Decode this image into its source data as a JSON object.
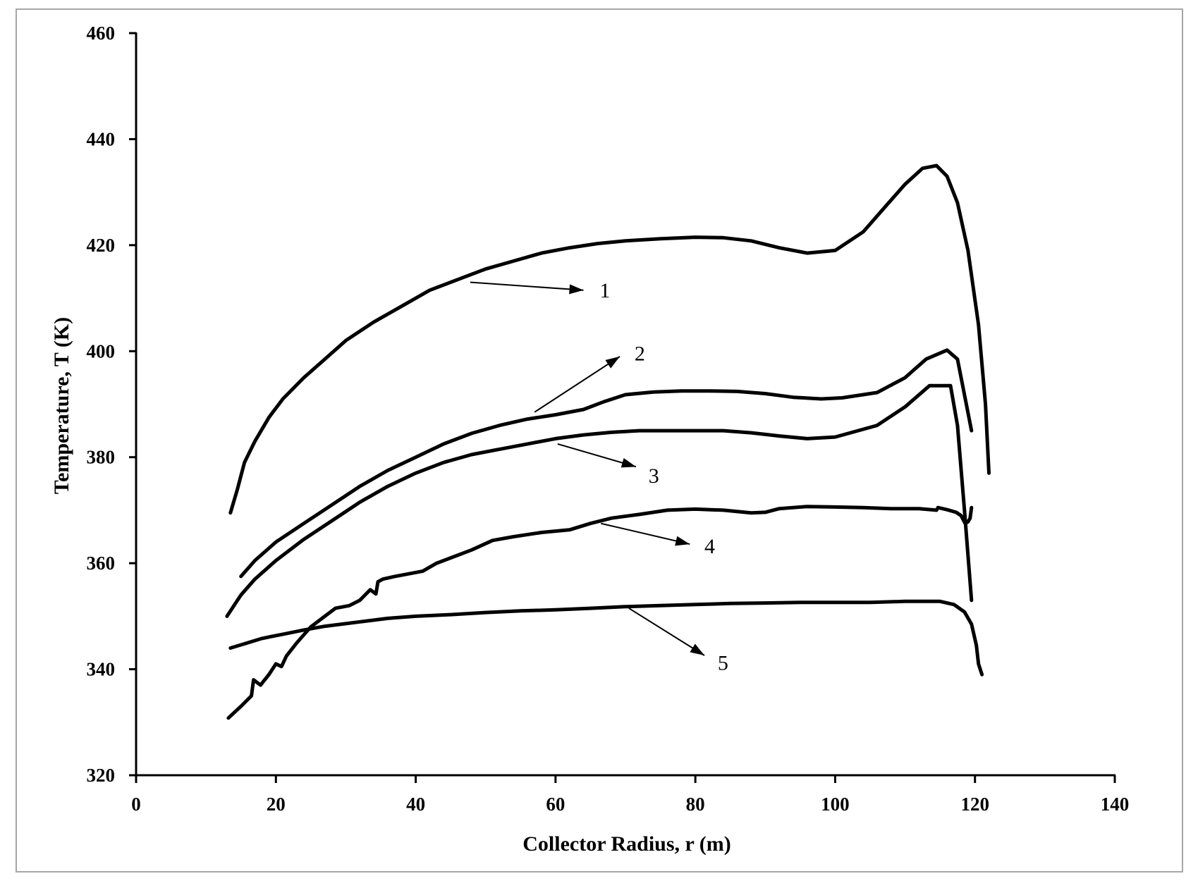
{
  "chart_data": {
    "type": "line",
    "title": "",
    "xlabel": "Collector Radius, r (m)",
    "ylabel": "Temperature, T (K)",
    "xlim": [
      0,
      140
    ],
    "ylim": [
      320,
      460
    ],
    "xticks": [
      0,
      20,
      40,
      60,
      80,
      100,
      120,
      140
    ],
    "yticks": [
      320,
      340,
      360,
      380,
      400,
      420,
      440,
      460
    ],
    "xtick_labels": [
      "0",
      "20",
      "40",
      "60",
      "80",
      "100",
      "120",
      "140"
    ],
    "ytick_labels": [
      "320",
      "340",
      "360",
      "380",
      "400",
      "420",
      "440",
      "460"
    ],
    "grid": false,
    "legend": "none",
    "colors": {
      "line": "#000000",
      "frame": "#a6a6a6"
    },
    "series": [
      {
        "name": "1",
        "x": [
          13.5,
          14.5,
          15.5,
          17,
          19,
          21,
          24,
          27,
          30,
          34,
          38,
          42,
          46,
          50,
          54,
          58,
          62,
          66,
          70,
          75,
          80,
          84,
          88,
          92,
          96,
          100,
          104,
          107,
          110,
          112.5,
          114.5,
          116,
          117.5,
          119,
          120.5,
          121.5,
          122
        ],
        "y": [
          369.5,
          374,
          379,
          383,
          387.5,
          391,
          395,
          398.5,
          402,
          405.5,
          408.5,
          411.5,
          413.5,
          415.5,
          417,
          418.5,
          419.5,
          420.3,
          420.8,
          421.2,
          421.5,
          421.4,
          420.8,
          419.5,
          418.5,
          419,
          422.5,
          427,
          431.5,
          434.5,
          435,
          433,
          428,
          419,
          405,
          390,
          377
        ]
      },
      {
        "name": "2",
        "x": [
          15,
          17,
          20,
          24,
          28,
          32,
          36,
          40,
          44,
          48,
          52,
          56,
          60,
          64,
          67,
          70,
          74,
          78,
          82,
          86,
          90,
          94,
          98,
          101,
          106,
          110,
          113,
          116,
          117.5,
          119.5
        ],
        "y": [
          357.5,
          360.5,
          364,
          367.5,
          371,
          374.5,
          377.5,
          380,
          382.5,
          384.5,
          386,
          387.2,
          388,
          389,
          390.5,
          391.8,
          392.3,
          392.5,
          392.5,
          392.4,
          392,
          391.3,
          391,
          391.2,
          392.2,
          395,
          398.5,
          400.2,
          398.5,
          385
        ]
      },
      {
        "name": "3",
        "x": [
          13,
          15,
          17,
          20,
          24,
          28,
          32,
          36,
          40,
          44,
          48,
          52,
          56,
          60,
          64,
          68,
          72,
          76,
          80,
          84,
          88,
          92,
          96,
          100,
          106,
          110,
          113.5,
          116.5,
          117.5,
          118.5,
          119.5
        ],
        "y": [
          350,
          354,
          357,
          360.5,
          364.5,
          368,
          371.5,
          374.5,
          377,
          379,
          380.5,
          381.5,
          382.5,
          383.5,
          384.2,
          384.7,
          385,
          385,
          385,
          385,
          384.6,
          384,
          383.5,
          383.8,
          386,
          389.5,
          393.5,
          393.5,
          386,
          370,
          353
        ]
      },
      {
        "name": "4",
        "x": [
          13.2,
          15,
          16.5,
          16.8,
          17.8,
          19,
          20,
          20.8,
          21.5,
          23,
          25,
          27,
          28.5,
          30.5,
          32,
          33.5,
          34.3,
          34.6,
          35.3,
          37,
          39,
          41,
          43,
          45,
          48,
          51,
          54,
          58,
          62,
          65,
          68,
          72,
          76,
          80,
          84,
          88,
          90,
          92,
          96,
          100,
          104,
          108,
          112,
          114.5,
          114.7,
          116,
          117.3,
          118,
          118.6,
          119,
          119.3,
          119.5
        ],
        "y": [
          330.8,
          333,
          335,
          338,
          337,
          339,
          341,
          340.5,
          342.5,
          345,
          348,
          350,
          351.5,
          352,
          353,
          355,
          354.2,
          356.5,
          357,
          357.5,
          358,
          358.5,
          360,
          361,
          362.5,
          364.3,
          365,
          365.8,
          366.3,
          367.5,
          368.5,
          369.2,
          370,
          370.2,
          370,
          369.5,
          369.6,
          370.3,
          370.7,
          370.6,
          370.5,
          370.3,
          370.3,
          370,
          370.5,
          370.1,
          369.6,
          369,
          367.5,
          367.8,
          368.5,
          370.5
        ]
      },
      {
        "name": "5",
        "x": [
          13.5,
          16,
          18,
          21,
          24,
          27,
          30,
          33,
          36,
          40,
          45,
          50,
          55,
          60,
          65,
          70,
          75,
          80,
          85,
          90,
          95,
          100,
          105,
          110,
          115,
          117,
          118.5,
          119.5,
          120.2,
          120.5,
          121
        ],
        "y": [
          344,
          345,
          345.8,
          346.6,
          347.4,
          348.1,
          348.6,
          349.1,
          349.6,
          350,
          350.3,
          350.7,
          351,
          351.2,
          351.5,
          351.8,
          352,
          352.2,
          352.4,
          352.5,
          352.6,
          352.6,
          352.6,
          352.8,
          352.8,
          352.2,
          350.8,
          348.5,
          344.5,
          341,
          339
        ]
      }
    ],
    "annotations": [
      {
        "label": "1",
        "from": [
          47.8,
          413
        ],
        "to": [
          64,
          411.5
        ],
        "text_at": [
          66.3,
          411.5
        ]
      },
      {
        "label": "2",
        "from": [
          57,
          388.5
        ],
        "to": [
          69.2,
          399
        ],
        "text_at": [
          71.3,
          399.6
        ]
      },
      {
        "label": "3",
        "from": [
          60.3,
          382.5
        ],
        "to": [
          71.5,
          378.2
        ],
        "text_at": [
          73.3,
          376.5
        ]
      },
      {
        "label": "4",
        "from": [
          66.5,
          367.5
        ],
        "to": [
          79.2,
          363.6
        ],
        "text_at": [
          81.3,
          363.2
        ]
      },
      {
        "label": "5",
        "from": [
          70.5,
          351.5
        ],
        "to": [
          81.3,
          342.6
        ],
        "text_at": [
          83.2,
          341.2
        ]
      }
    ]
  }
}
